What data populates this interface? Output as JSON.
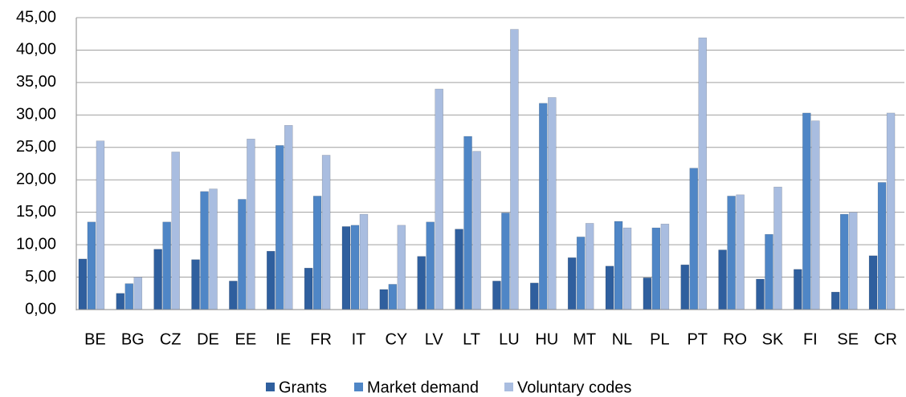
{
  "chart_data": {
    "type": "bar",
    "categories": [
      "BE",
      "BG",
      "CZ",
      "DE",
      "EE",
      "IE",
      "FR",
      "IT",
      "CY",
      "LV",
      "LT",
      "LU",
      "HU",
      "MT",
      "NL",
      "PL",
      "PT",
      "RO",
      "SK",
      "FI",
      "SE",
      "CR"
    ],
    "series": [
      {
        "name": "Grants",
        "color": "#2f5f9e",
        "values": [
          7.8,
          2.5,
          9.3,
          7.7,
          4.4,
          9.0,
          6.4,
          12.8,
          3.1,
          8.2,
          12.4,
          4.4,
          4.1,
          8.0,
          6.7,
          4.9,
          6.9,
          9.2,
          4.7,
          6.2,
          2.7,
          8.3
        ]
      },
      {
        "name": "Market demand",
        "color": "#4f86c6",
        "values": [
          13.5,
          4.0,
          13.5,
          18.2,
          17.0,
          25.3,
          17.5,
          13.0,
          3.9,
          13.5,
          26.7,
          14.9,
          31.8,
          11.2,
          13.6,
          12.6,
          21.8,
          17.5,
          11.6,
          30.3,
          14.7,
          19.6
        ]
      },
      {
        "name": "Voluntary codes",
        "color": "#a9bde0",
        "values": [
          26.0,
          5.0,
          24.3,
          18.6,
          26.3,
          28.4,
          23.8,
          14.7,
          13.0,
          34.0,
          24.4,
          43.2,
          32.7,
          13.3,
          12.6,
          13.2,
          41.9,
          17.7,
          18.9,
          29.1,
          15.0,
          30.3
        ]
      }
    ],
    "ylim": [
      0,
      45
    ],
    "yticks": [
      {
        "value": 0,
        "label": "0,00"
      },
      {
        "value": 5,
        "label": "5,00"
      },
      {
        "value": 10,
        "label": "10,00"
      },
      {
        "value": 15,
        "label": "15,00"
      },
      {
        "value": 20,
        "label": "20,00"
      },
      {
        "value": 25,
        "label": "25,00"
      },
      {
        "value": 30,
        "label": "30,00"
      },
      {
        "value": 35,
        "label": "35,00"
      },
      {
        "value": 40,
        "label": "40,00"
      },
      {
        "value": 45,
        "label": "45,00"
      }
    ],
    "grid": true,
    "legend": "bottom"
  }
}
